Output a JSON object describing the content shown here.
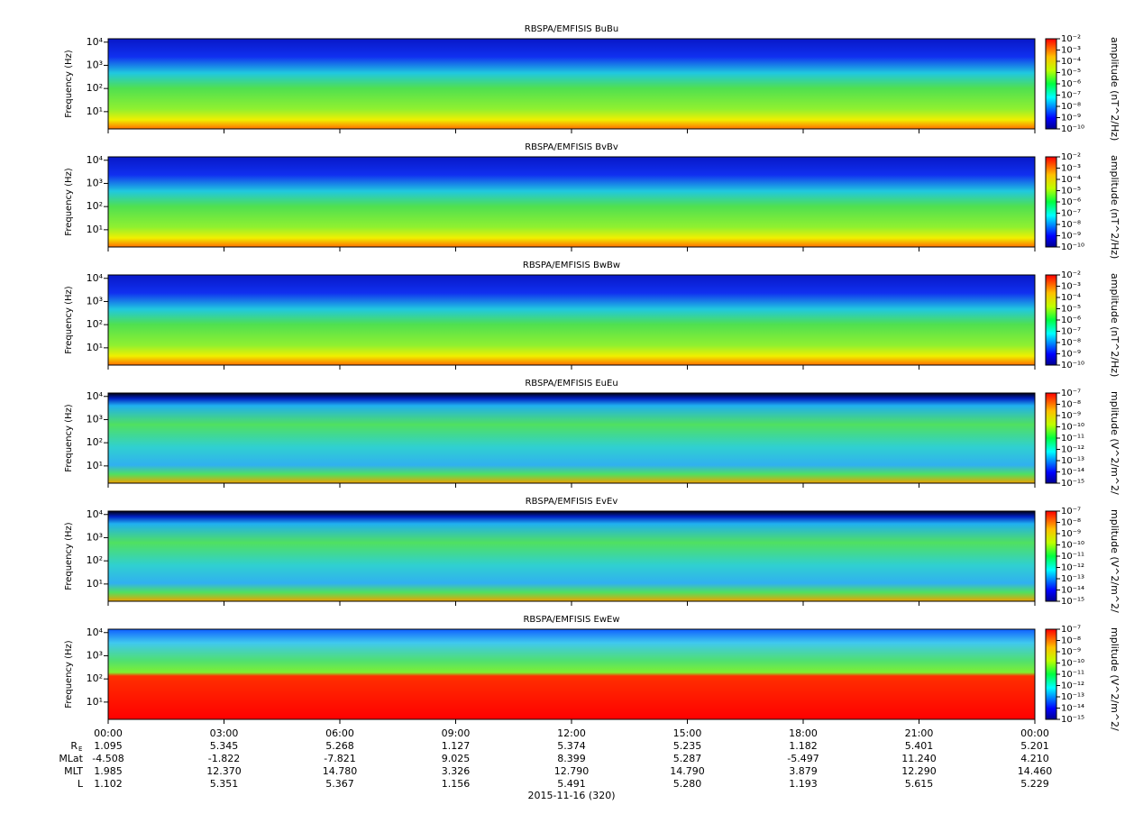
{
  "chart_data": [
    {
      "type": "spectrogram",
      "title": "RBSPA/EMFISIS  BuBu",
      "ylabel": "Frequency (Hz)",
      "log": true,
      "ylim": [
        1.8,
        14000
      ],
      "yticks": [
        {
          "value": 10,
          "label": "10¹"
        },
        {
          "value": 100,
          "label": "10²"
        },
        {
          "value": 1000,
          "label": "10³"
        },
        {
          "value": 10000,
          "label": "10⁴"
        }
      ],
      "zlabel": "amplitude (nT^2/Hz)",
      "zlim": [
        1e-10,
        0.01
      ],
      "zticks": [
        {
          "value": 1e-10,
          "label": "10⁻¹⁰"
        },
        {
          "value": 1e-09,
          "label": "10⁻⁹"
        },
        {
          "value": 1e-08,
          "label": "10⁻⁸"
        },
        {
          "value": 1e-07,
          "label": "10⁻⁷"
        },
        {
          "value": 1e-06,
          "label": "10⁻⁶"
        },
        {
          "value": 1e-05,
          "label": "10⁻⁵"
        },
        {
          "value": 0.0001,
          "label": "10⁻⁴"
        },
        {
          "value": 0.001,
          "label": "10⁻³"
        },
        {
          "value": 0.01,
          "label": "10⁻²"
        }
      ]
    },
    {
      "type": "spectrogram",
      "title": "RBSPA/EMFISIS  BvBv",
      "ylabel": "Frequency (Hz)",
      "log": true,
      "ylim": [
        1.8,
        14000
      ],
      "yticks": [
        {
          "value": 10,
          "label": "10¹"
        },
        {
          "value": 100,
          "label": "10²"
        },
        {
          "value": 1000,
          "label": "10³"
        },
        {
          "value": 10000,
          "label": "10⁴"
        }
      ],
      "zlabel": "amplitude (nT^2/Hz)",
      "zlim": [
        1e-10,
        0.01
      ],
      "zticks": [
        {
          "value": 1e-10,
          "label": "10⁻¹⁰"
        },
        {
          "value": 1e-09,
          "label": "10⁻⁹"
        },
        {
          "value": 1e-08,
          "label": "10⁻⁸"
        },
        {
          "value": 1e-07,
          "label": "10⁻⁷"
        },
        {
          "value": 1e-06,
          "label": "10⁻⁶"
        },
        {
          "value": 1e-05,
          "label": "10⁻⁵"
        },
        {
          "value": 0.0001,
          "label": "10⁻⁴"
        },
        {
          "value": 0.001,
          "label": "10⁻³"
        },
        {
          "value": 0.01,
          "label": "10⁻²"
        }
      ]
    },
    {
      "type": "spectrogram",
      "title": "RBSPA/EMFISIS  BwBw",
      "ylabel": "Frequency (Hz)",
      "log": true,
      "ylim": [
        1.8,
        14000
      ],
      "yticks": [
        {
          "value": 10,
          "label": "10¹"
        },
        {
          "value": 100,
          "label": "10²"
        },
        {
          "value": 1000,
          "label": "10³"
        },
        {
          "value": 10000,
          "label": "10⁴"
        }
      ],
      "zlabel": "amplitude (nT^2/Hz)",
      "zlim": [
        1e-10,
        0.01
      ],
      "zticks": [
        {
          "value": 1e-10,
          "label": "10⁻¹⁰"
        },
        {
          "value": 1e-09,
          "label": "10⁻⁹"
        },
        {
          "value": 1e-08,
          "label": "10⁻⁸"
        },
        {
          "value": 1e-07,
          "label": "10⁻⁷"
        },
        {
          "value": 1e-06,
          "label": "10⁻⁶"
        },
        {
          "value": 1e-05,
          "label": "10⁻⁵"
        },
        {
          "value": 0.0001,
          "label": "10⁻⁴"
        },
        {
          "value": 0.001,
          "label": "10⁻³"
        },
        {
          "value": 0.01,
          "label": "10⁻²"
        }
      ]
    },
    {
      "type": "spectrogram",
      "title": "RBSPA/EMFISIS  EuEu",
      "ylabel": "Frequency (Hz)",
      "log": true,
      "ylim": [
        1.8,
        14000
      ],
      "yticks": [
        {
          "value": 10,
          "label": "10¹"
        },
        {
          "value": 100,
          "label": "10²"
        },
        {
          "value": 1000,
          "label": "10³"
        },
        {
          "value": 10000,
          "label": "10⁴"
        }
      ],
      "zlabel": "mplitude (V^2/m^2/",
      "zlim": [
        1e-15,
        1e-07
      ],
      "zticks": [
        {
          "value": 1e-15,
          "label": "10⁻¹⁵"
        },
        {
          "value": 1e-14,
          "label": "10⁻¹⁴"
        },
        {
          "value": 1e-13,
          "label": "10⁻¹³"
        },
        {
          "value": 1e-12,
          "label": "10⁻¹²"
        },
        {
          "value": 1e-11,
          "label": "10⁻¹¹"
        },
        {
          "value": 1e-10,
          "label": "10⁻¹⁰"
        },
        {
          "value": 1e-09,
          "label": "10⁻⁹"
        },
        {
          "value": 1e-08,
          "label": "10⁻⁸"
        },
        {
          "value": 1e-07,
          "label": "10⁻⁷"
        }
      ]
    },
    {
      "type": "spectrogram",
      "title": "RBSPA/EMFISIS  EvEv",
      "ylabel": "Frequency (Hz)",
      "log": true,
      "ylim": [
        1.8,
        14000
      ],
      "yticks": [
        {
          "value": 10,
          "label": "10¹"
        },
        {
          "value": 100,
          "label": "10²"
        },
        {
          "value": 1000,
          "label": "10³"
        },
        {
          "value": 10000,
          "label": "10⁴"
        }
      ],
      "zlabel": "mplitude (V^2/m^2/",
      "zlim": [
        1e-15,
        1e-07
      ],
      "zticks": [
        {
          "value": 1e-15,
          "label": "10⁻¹⁵"
        },
        {
          "value": 1e-14,
          "label": "10⁻¹⁴"
        },
        {
          "value": 1e-13,
          "label": "10⁻¹³"
        },
        {
          "value": 1e-12,
          "label": "10⁻¹²"
        },
        {
          "value": 1e-11,
          "label": "10⁻¹¹"
        },
        {
          "value": 1e-10,
          "label": "10⁻¹⁰"
        },
        {
          "value": 1e-09,
          "label": "10⁻⁹"
        },
        {
          "value": 1e-08,
          "label": "10⁻⁸"
        },
        {
          "value": 1e-07,
          "label": "10⁻⁷"
        }
      ]
    },
    {
      "type": "spectrogram",
      "title": "RBSPA/EMFISIS  EwEw",
      "ylabel": "Frequency (Hz)",
      "log": true,
      "ylim": [
        1.8,
        14000
      ],
      "yticks": [
        {
          "value": 10,
          "label": "10¹"
        },
        {
          "value": 100,
          "label": "10²"
        },
        {
          "value": 1000,
          "label": "10³"
        },
        {
          "value": 10000,
          "label": "10⁴"
        }
      ],
      "zlabel": "mplitude (V^2/m^2/",
      "zlim": [
        1e-15,
        1e-07
      ],
      "zticks": [
        {
          "value": 1e-15,
          "label": "10⁻¹⁵"
        },
        {
          "value": 1e-14,
          "label": "10⁻¹⁴"
        },
        {
          "value": 1e-13,
          "label": "10⁻¹³"
        },
        {
          "value": 1e-12,
          "label": "10⁻¹²"
        },
        {
          "value": 1e-11,
          "label": "10⁻¹¹"
        },
        {
          "value": 1e-10,
          "label": "10⁻¹⁰"
        },
        {
          "value": 1e-09,
          "label": "10⁻⁹"
        },
        {
          "value": 1e-08,
          "label": "10⁻⁸"
        },
        {
          "value": 1e-07,
          "label": "10⁻⁷"
        }
      ]
    }
  ],
  "time_axis": {
    "xlim": [
      0,
      24
    ],
    "xticks": [
      {
        "value": 0,
        "label": "00:00"
      },
      {
        "value": 3,
        "label": "03:00"
      },
      {
        "value": 6,
        "label": "06:00"
      },
      {
        "value": 9,
        "label": "09:00"
      },
      {
        "value": 12,
        "label": "12:00"
      },
      {
        "value": 15,
        "label": "15:00"
      },
      {
        "value": 18,
        "label": "18:00"
      },
      {
        "value": 21,
        "label": "21:00"
      },
      {
        "value": 24,
        "label": "00:00"
      }
    ],
    "rows": [
      {
        "label": "R",
        "sub": "E",
        "values": [
          "1.095",
          "5.345",
          "5.268",
          "1.127",
          "5.374",
          "5.235",
          "1.182",
          "5.401",
          "5.201"
        ]
      },
      {
        "label": "MLat",
        "values": [
          "-4.508",
          "-1.822",
          "-7.821",
          "9.025",
          "8.399",
          "5.287",
          "-5.497",
          "11.240",
          "4.210"
        ]
      },
      {
        "label": "MLT",
        "values": [
          "1.985",
          "12.370",
          "14.780",
          "3.326",
          "12.790",
          "14.790",
          "3.879",
          "12.290",
          "14.460"
        ]
      },
      {
        "label": "L",
        "values": [
          "1.102",
          "5.351",
          "5.367",
          "1.156",
          "5.491",
          "5.280",
          "1.193",
          "5.615",
          "5.229"
        ]
      }
    ],
    "date": "2015-11-16 (320)"
  }
}
